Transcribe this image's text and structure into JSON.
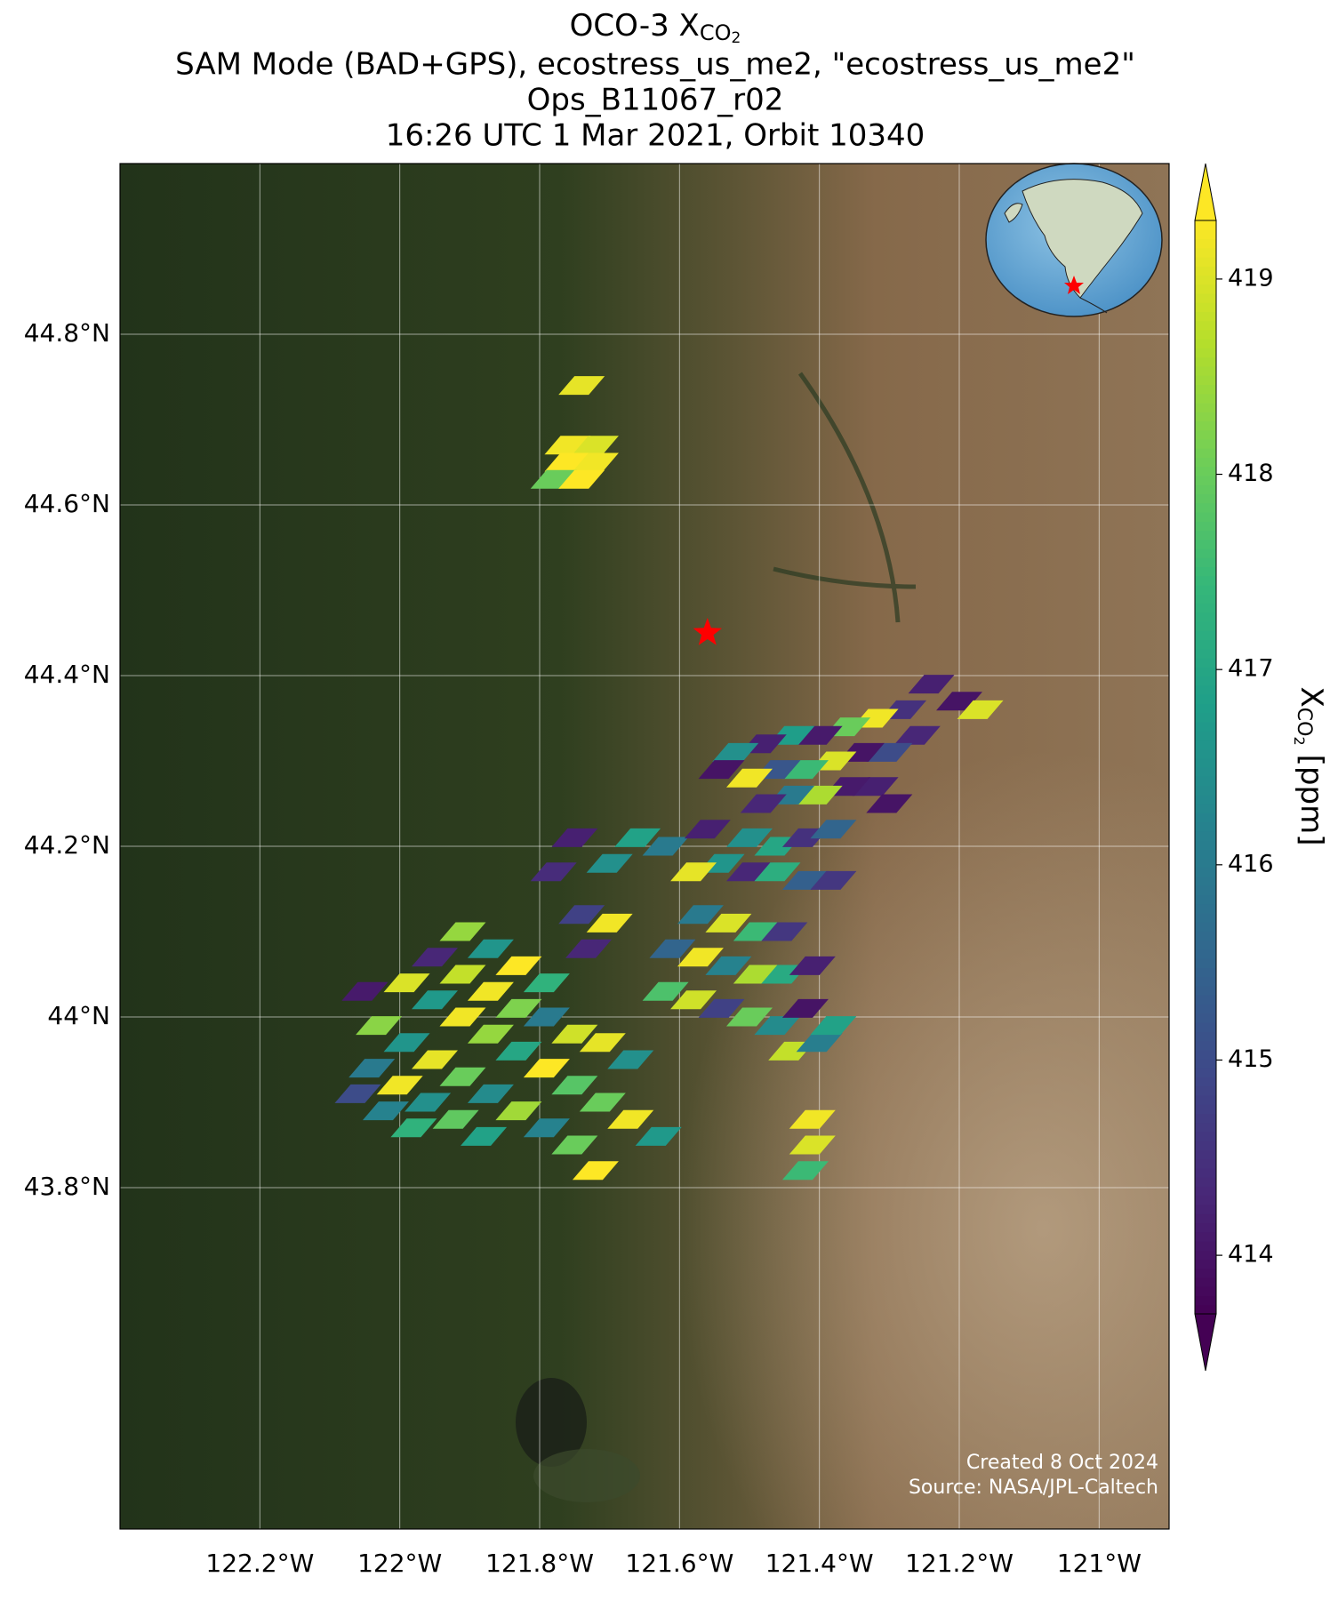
{
  "chart_data": {
    "type": "map",
    "title": "OCO-3 X",
    "title_subscript": "CO",
    "title_subsubscript": "2",
    "subtitle_lines": [
      "SAM Mode (BAD+GPS), ecostress_us_me2, \"ecostress_us_me2\"",
      "Ops_B11067_r02",
      "16:26 UTC 1 Mar 2021, Orbit 10340"
    ],
    "xlim": [
      -122.4,
      -120.9
    ],
    "ylim": [
      43.4,
      45.0
    ],
    "xticks": [
      {
        "value": -122.2,
        "label": "122.2°W"
      },
      {
        "value": -122.0,
        "label": "122°W"
      },
      {
        "value": -121.8,
        "label": "121.8°W"
      },
      {
        "value": -121.6,
        "label": "121.6°W"
      },
      {
        "value": -121.4,
        "label": "121.4°W"
      },
      {
        "value": -121.2,
        "label": "121.2°W"
      },
      {
        "value": -121.0,
        "label": "121°W"
      }
    ],
    "yticks": [
      {
        "value": 43.8,
        "label": "43.8°N"
      },
      {
        "value": 44.0,
        "label": "44°N"
      },
      {
        "value": 44.2,
        "label": "44.2°N"
      },
      {
        "value": 44.4,
        "label": "44.4°N"
      },
      {
        "value": 44.6,
        "label": "44.6°N"
      },
      {
        "value": 44.8,
        "label": "44.8°N"
      }
    ],
    "grid": true,
    "colormap": "viridis",
    "clim": [
      413.7,
      419.3
    ],
    "cticks": [
      414,
      415,
      416,
      417,
      418,
      419
    ],
    "cbar_label": "X",
    "cbar_label_subscript": "CO",
    "cbar_label_subsubscript": "2",
    "cbar_label_units": "[ppm]",
    "site": [
      -121.56,
      44.45
    ],
    "site_color": "#ff0000",
    "soundings": [
      [
        -121.74,
        44.74,
        419.1
      ],
      [
        -121.76,
        44.67,
        419.2
      ],
      [
        -121.72,
        44.67,
        419.0
      ],
      [
        -121.76,
        44.65,
        419.3
      ],
      [
        -121.72,
        44.65,
        419.2
      ],
      [
        -121.78,
        44.63,
        418.0
      ],
      [
        -121.74,
        44.63,
        419.3
      ],
      [
        -121.24,
        44.39,
        414.2
      ],
      [
        -121.2,
        44.37,
        414.0
      ],
      [
        -121.17,
        44.36,
        419.0
      ],
      [
        -121.28,
        44.36,
        414.5
      ],
      [
        -121.32,
        44.35,
        419.2
      ],
      [
        -121.36,
        44.34,
        418.0
      ],
      [
        -121.4,
        44.33,
        414.1
      ],
      [
        -121.44,
        44.33,
        416.8
      ],
      [
        -121.48,
        44.32,
        414.2
      ],
      [
        -121.52,
        44.31,
        416.5
      ],
      [
        -121.26,
        44.33,
        414.3
      ],
      [
        -121.3,
        44.31,
        415.0
      ],
      [
        -121.34,
        44.31,
        414.0
      ],
      [
        -121.38,
        44.3,
        419.0
      ],
      [
        -121.42,
        44.29,
        417.5
      ],
      [
        -121.46,
        44.29,
        415.2
      ],
      [
        -121.5,
        44.28,
        419.2
      ],
      [
        -121.54,
        44.29,
        414.0
      ],
      [
        -121.32,
        44.27,
        414.2
      ],
      [
        -121.36,
        44.27,
        414.1
      ],
      [
        -121.4,
        44.26,
        418.6
      ],
      [
        -121.44,
        44.26,
        416.0
      ],
      [
        -121.48,
        44.25,
        414.3
      ],
      [
        -121.3,
        44.25,
        414.0
      ],
      [
        -121.66,
        44.21,
        416.9
      ],
      [
        -121.62,
        44.2,
        416.0
      ],
      [
        -121.56,
        44.22,
        414.2
      ],
      [
        -121.5,
        44.21,
        416.5
      ],
      [
        -121.46,
        44.2,
        417.0
      ],
      [
        -121.42,
        44.21,
        414.5
      ],
      [
        -121.38,
        44.22,
        415.5
      ],
      [
        -121.54,
        44.18,
        416.6
      ],
      [
        -121.5,
        44.17,
        414.3
      ],
      [
        -121.46,
        44.17,
        417.2
      ],
      [
        -121.42,
        44.16,
        415.4
      ],
      [
        -121.38,
        44.16,
        414.6
      ],
      [
        -121.58,
        44.17,
        419.1
      ],
      [
        -121.75,
        44.21,
        414.2
      ],
      [
        -121.7,
        44.18,
        416.5
      ],
      [
        -121.57,
        44.12,
        416.0
      ],
      [
        -121.53,
        44.11,
        419.0
      ],
      [
        -121.49,
        44.1,
        417.5
      ],
      [
        -121.45,
        44.1,
        414.6
      ],
      [
        -121.61,
        44.08,
        415.5
      ],
      [
        -121.57,
        44.07,
        419.2
      ],
      [
        -121.53,
        44.06,
        416.2
      ],
      [
        -121.49,
        44.05,
        418.6
      ],
      [
        -121.45,
        44.05,
        417.1
      ],
      [
        -121.41,
        44.06,
        414.2
      ],
      [
        -121.62,
        44.03,
        417.7
      ],
      [
        -121.58,
        44.02,
        418.9
      ],
      [
        -121.54,
        44.01,
        414.8
      ],
      [
        -121.5,
        44.0,
        418.0
      ],
      [
        -121.46,
        43.99,
        416.4
      ],
      [
        -121.42,
        44.01,
        414.0
      ],
      [
        -121.44,
        43.96,
        418.8
      ],
      [
        -121.4,
        43.97,
        416.1
      ],
      [
        -121.38,
        43.99,
        416.9
      ],
      [
        -121.41,
        43.88,
        419.2
      ],
      [
        -121.41,
        43.85,
        419.0
      ],
      [
        -121.42,
        43.82,
        417.5
      ],
      [
        -121.91,
        44.1,
        418.4
      ],
      [
        -121.87,
        44.08,
        416.6
      ],
      [
        -121.83,
        44.06,
        419.3
      ],
      [
        -121.79,
        44.04,
        417.3
      ],
      [
        -121.95,
        44.07,
        414.3
      ],
      [
        -121.91,
        44.05,
        418.8
      ],
      [
        -121.87,
        44.03,
        419.2
      ],
      [
        -121.83,
        44.01,
        418.2
      ],
      [
        -121.79,
        44.0,
        416.0
      ],
      [
        -121.75,
        43.98,
        418.9
      ],
      [
        -121.71,
        43.97,
        419.1
      ],
      [
        -121.67,
        43.95,
        416.5
      ],
      [
        -121.99,
        44.04,
        419.0
      ],
      [
        -121.95,
        44.02,
        416.7
      ],
      [
        -121.91,
        44.0,
        419.2
      ],
      [
        -121.87,
        43.98,
        418.4
      ],
      [
        -121.83,
        43.96,
        417.0
      ],
      [
        -121.79,
        43.94,
        419.3
      ],
      [
        -121.75,
        43.92,
        417.8
      ],
      [
        -121.71,
        43.9,
        418.0
      ],
      [
        -121.67,
        43.88,
        419.2
      ],
      [
        -121.63,
        43.86,
        416.7
      ],
      [
        -122.05,
        44.03,
        414.1
      ],
      [
        -122.03,
        43.99,
        418.3
      ],
      [
        -121.99,
        43.97,
        416.6
      ],
      [
        -121.95,
        43.95,
        419.1
      ],
      [
        -121.91,
        43.93,
        418.0
      ],
      [
        -121.87,
        43.91,
        416.4
      ],
      [
        -121.83,
        43.89,
        418.5
      ],
      [
        -121.79,
        43.87,
        416.2
      ],
      [
        -121.75,
        43.85,
        418.0
      ],
      [
        -121.72,
        43.82,
        419.3
      ],
      [
        -122.04,
        43.94,
        416.0
      ],
      [
        -122.0,
        43.92,
        419.2
      ],
      [
        -121.96,
        43.9,
        416.5
      ],
      [
        -121.92,
        43.88,
        417.9
      ],
      [
        -121.88,
        43.86,
        416.9
      ],
      [
        -122.06,
        43.91,
        415.0
      ],
      [
        -122.02,
        43.89,
        416.2
      ],
      [
        -121.98,
        43.87,
        417.3
      ],
      [
        -121.74,
        44.12,
        414.8
      ],
      [
        -121.7,
        44.11,
        419.2
      ],
      [
        -121.73,
        44.08,
        414.3
      ],
      [
        -121.78,
        44.17,
        414.4
      ]
    ],
    "credits": [
      "Created 8 Oct 2024",
      "Source: NASA/JPL-Caltech"
    ]
  }
}
